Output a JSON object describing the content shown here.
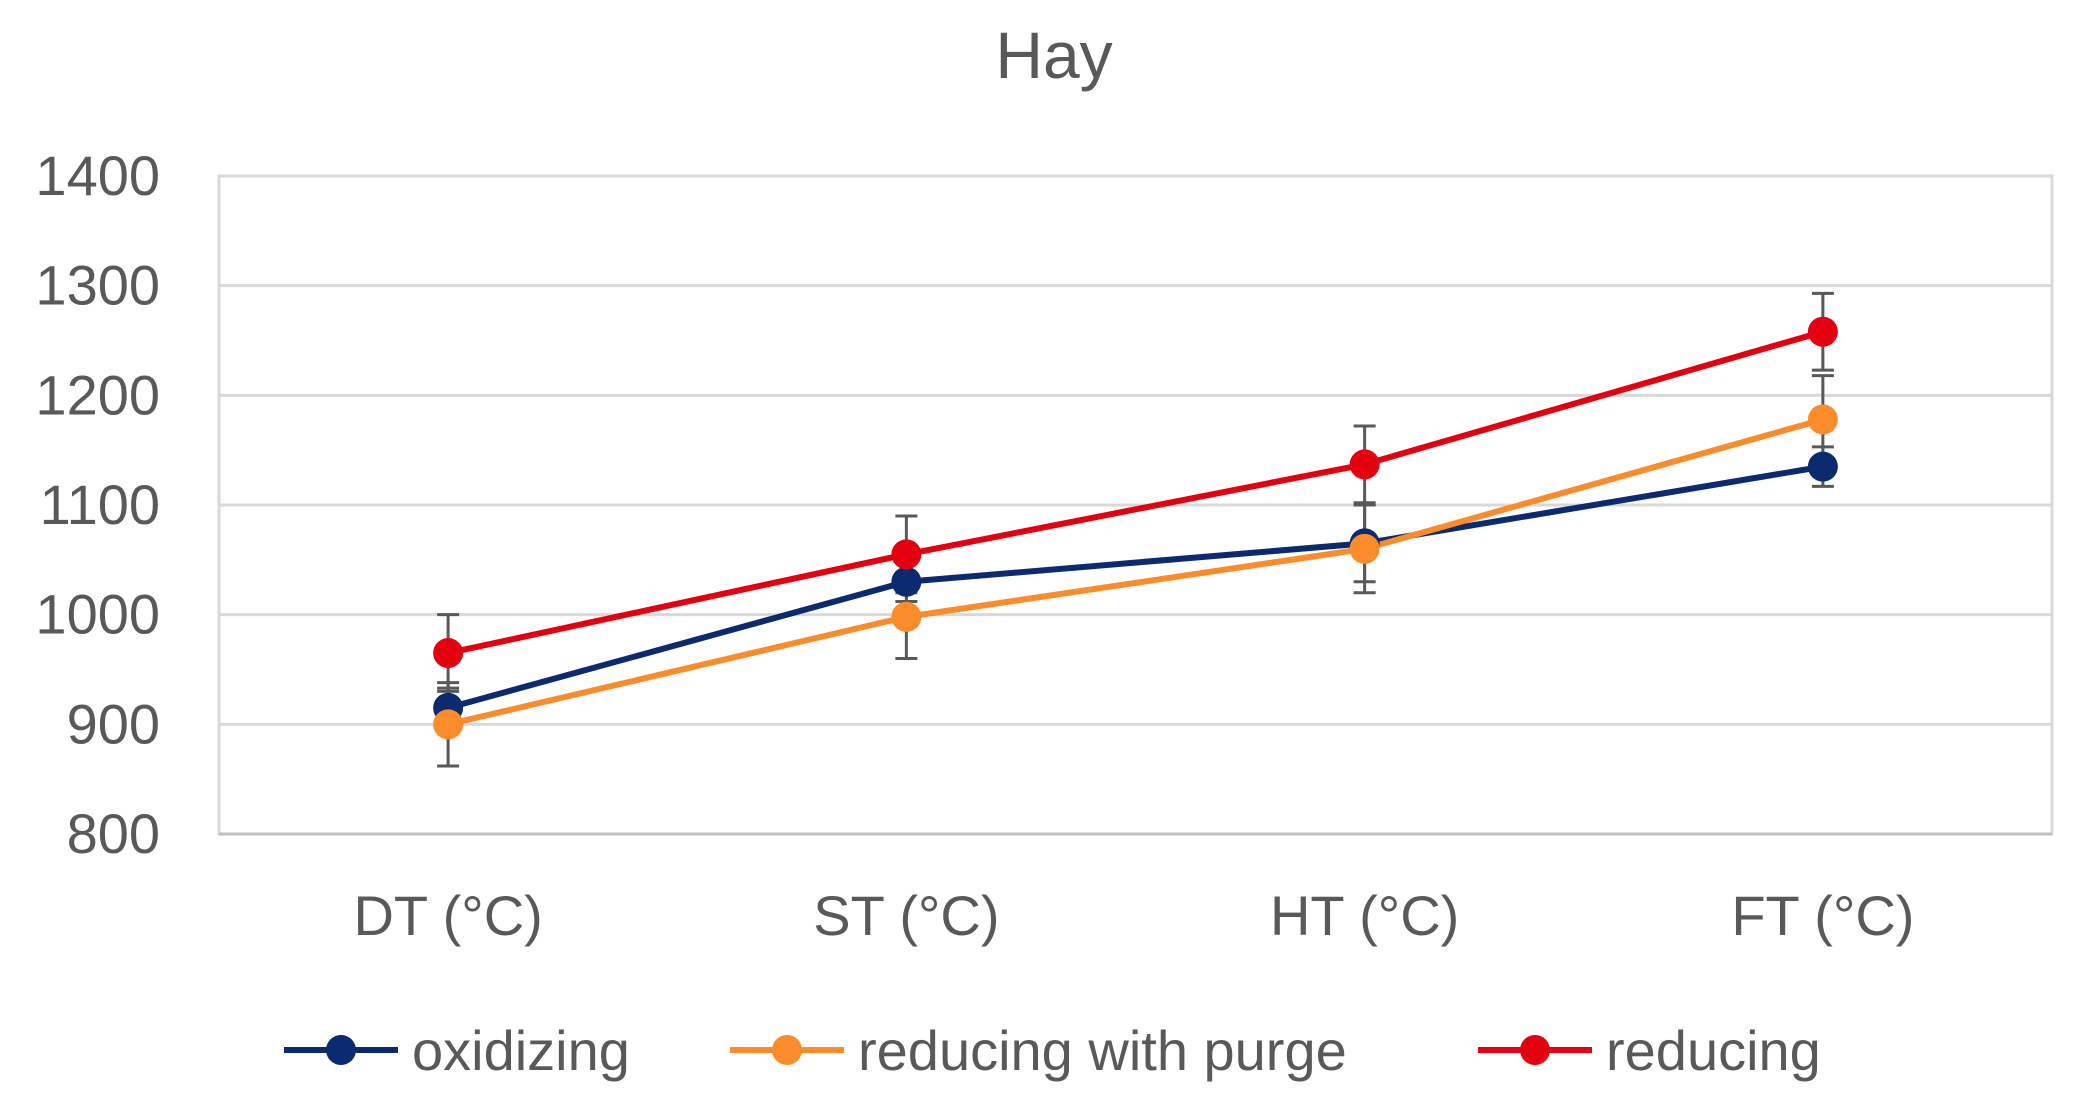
{
  "chart_data": {
    "type": "line",
    "title": "Hay",
    "xlabel": "",
    "ylabel": "",
    "categories": [
      "DT (°C)",
      "ST (°C)",
      "HT (°C)",
      "FT (°C)"
    ],
    "ylim": [
      800,
      1400
    ],
    "yticks": [
      800,
      900,
      1000,
      1100,
      1200,
      1300,
      1400
    ],
    "grid": true,
    "legend_position": "bottom",
    "error_bars": true,
    "series": [
      {
        "name": "oxidizing",
        "color": "#0b2a6f",
        "values": [
          915,
          1030,
          1065,
          1135
        ],
        "errors": [
          18,
          18,
          35,
          18
        ]
      },
      {
        "name": "reducing with purge",
        "color": "#fb8c2b",
        "values": [
          900,
          998,
          1060,
          1178
        ],
        "errors": [
          38,
          38,
          40,
          40
        ]
      },
      {
        "name": "reducing",
        "color": "#e3000f",
        "values": [
          965,
          1055,
          1137,
          1258
        ],
        "errors": [
          35,
          35,
          35,
          35
        ]
      }
    ]
  }
}
